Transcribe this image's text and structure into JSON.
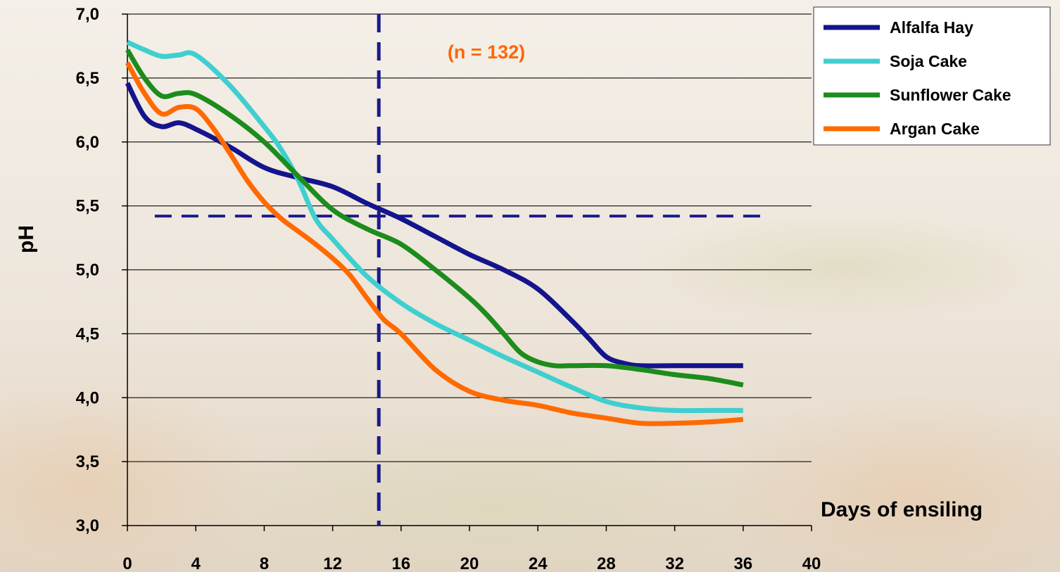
{
  "chart_data": {
    "type": "line",
    "title": "",
    "xlabel": "Days of ensiling",
    "ylabel": "pH",
    "xlim": [
      0,
      40
    ],
    "ylim": [
      3.0,
      7.0
    ],
    "x_ticks": [
      "0",
      "4",
      "8",
      "12",
      "16",
      "20",
      "24",
      "28",
      "32",
      "36",
      "40"
    ],
    "y_ticks": [
      "3,0",
      "3,5",
      "4,0",
      "4,5",
      "5,0",
      "5,5",
      "6,0",
      "6,5",
      "7,0"
    ],
    "grid": "horizontal",
    "legend_position": "top-right",
    "annotation": {
      "text": "(n = 132)",
      "color": "#ff6600"
    },
    "reference_lines": {
      "vertical_x": 14.7,
      "horizontal_y": 5.42,
      "color": "#1a1a8c",
      "style": "dashed"
    },
    "series": [
      {
        "name": "Alfalfa Hay",
        "color": "#14148c",
        "x": [
          0,
          1,
          2,
          3,
          4,
          6,
          8,
          10,
          12,
          14,
          16,
          18,
          20,
          22,
          24,
          26,
          27,
          28,
          29,
          30,
          32,
          34,
          36
        ],
        "y": [
          6.46,
          6.2,
          6.12,
          6.15,
          6.1,
          5.96,
          5.8,
          5.72,
          5.65,
          5.52,
          5.4,
          5.26,
          5.12,
          5.0,
          4.85,
          4.6,
          4.46,
          4.32,
          4.27,
          4.25,
          4.25,
          4.25,
          4.25
        ]
      },
      {
        "name": "Soja Cake",
        "color": "#3fcfcf",
        "x": [
          0,
          1,
          2,
          3,
          4,
          6,
          8,
          9,
          10,
          11,
          12,
          14,
          16,
          18,
          20,
          22,
          24,
          26,
          28,
          30,
          32,
          34,
          36
        ],
        "y": [
          6.78,
          6.72,
          6.67,
          6.68,
          6.68,
          6.44,
          6.12,
          5.94,
          5.7,
          5.4,
          5.24,
          4.95,
          4.74,
          4.58,
          4.45,
          4.32,
          4.2,
          4.08,
          3.97,
          3.92,
          3.9,
          3.9,
          3.9
        ]
      },
      {
        "name": "Sunflower Cake",
        "color": "#1c8c1c",
        "x": [
          0,
          1,
          2,
          3,
          4,
          6,
          8,
          10,
          12,
          14,
          16,
          18,
          20,
          21,
          22,
          23,
          24,
          25,
          26,
          28,
          30,
          32,
          34,
          36
        ],
        "y": [
          6.72,
          6.5,
          6.36,
          6.38,
          6.37,
          6.21,
          6.0,
          5.73,
          5.47,
          5.32,
          5.2,
          5.0,
          4.78,
          4.65,
          4.5,
          4.35,
          4.28,
          4.25,
          4.25,
          4.25,
          4.22,
          4.18,
          4.15,
          4.1
        ]
      },
      {
        "name": "Argan Cake",
        "color": "#ff6a00",
        "x": [
          0,
          1,
          2,
          3,
          4,
          5,
          6,
          7,
          8,
          9,
          10,
          11,
          12,
          13,
          14,
          15,
          16,
          18,
          20,
          22,
          24,
          26,
          28,
          30,
          32,
          34,
          36
        ],
        "y": [
          6.62,
          6.38,
          6.22,
          6.27,
          6.26,
          6.11,
          5.91,
          5.7,
          5.53,
          5.4,
          5.3,
          5.2,
          5.09,
          4.96,
          4.78,
          4.61,
          4.5,
          4.22,
          4.05,
          3.98,
          3.94,
          3.88,
          3.84,
          3.8,
          3.8,
          3.81,
          3.83
        ]
      }
    ]
  }
}
